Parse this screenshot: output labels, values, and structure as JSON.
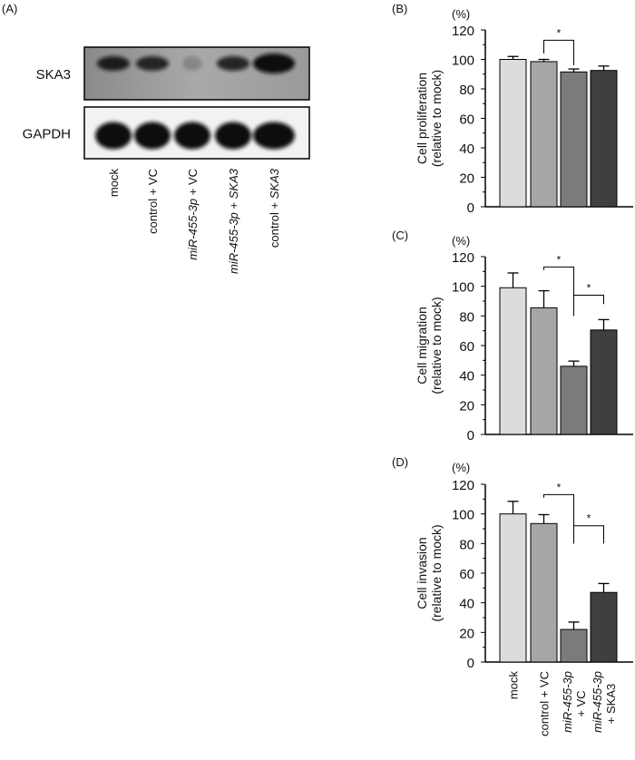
{
  "panel_a": {
    "label": "(A)",
    "rows": [
      "SKA3",
      "GAPDH"
    ],
    "band_intensity": {
      "SKA3": [
        0.9,
        0.85,
        0.2,
        0.85,
        1.0
      ],
      "GAPDH": [
        1.0,
        1.0,
        1.0,
        1.0,
        1.0
      ]
    },
    "lanes": [
      [
        {
          "t": "mock",
          "i": false
        }
      ],
      [
        {
          "t": "control + VC",
          "i": false
        }
      ],
      [
        {
          "t": "miR-455-3p",
          "i": true
        },
        {
          "t": " + VC",
          "i": false
        }
      ],
      [
        {
          "t": "miR-455-3p",
          "i": true
        },
        {
          "t": " + ",
          "i": false
        },
        {
          "t": "SKA3",
          "i": true
        }
      ],
      [
        {
          "t": "control + ",
          "i": false
        },
        {
          "t": "SKA3",
          "i": true
        }
      ]
    ]
  },
  "chart_data": [
    {
      "panel": "(B)",
      "type": "bar",
      "unit": "(%)",
      "ylabel": [
        "Cell proliferation",
        "(relative to mock)"
      ],
      "ylim": [
        0,
        120
      ],
      "yticks": [
        "0",
        "20",
        "40",
        "60",
        "80",
        "100",
        "120"
      ],
      "values": [
        100,
        98.5,
        91.5,
        92.5
      ],
      "errors": [
        2,
        1.5,
        2,
        3
      ],
      "significance": [
        {
          "pair": [
            1,
            2
          ],
          "label": "*"
        }
      ]
    },
    {
      "panel": "(C)",
      "type": "bar",
      "unit": "(%)",
      "ylabel": [
        "Cell migration",
        "(relative to mock)"
      ],
      "ylim": [
        0,
        120
      ],
      "yticks": [
        "0",
        "20",
        "40",
        "60",
        "80",
        "100",
        "120"
      ],
      "values": [
        99,
        85.5,
        46,
        70.5
      ],
      "errors": [
        10,
        11.5,
        3.5,
        7
      ],
      "significance": [
        {
          "pair": [
            1,
            2
          ],
          "label": "*"
        },
        {
          "pair": [
            2,
            3
          ],
          "label": "*"
        }
      ]
    },
    {
      "panel": "(D)",
      "type": "bar",
      "unit": "(%)",
      "ylabel": [
        "Cell invasion",
        "(relative to mock)"
      ],
      "ylim": [
        0,
        120
      ],
      "yticks": [
        "0",
        "20",
        "40",
        "60",
        "80",
        "100",
        "120"
      ],
      "values": [
        100,
        93.5,
        22,
        47
      ],
      "errors": [
        8.5,
        6,
        5,
        6
      ],
      "significance": [
        {
          "pair": [
            1,
            2
          ],
          "label": "*"
        },
        {
          "pair": [
            2,
            3
          ],
          "label": "*"
        }
      ],
      "categories": [
        [
          [
            {
              "t": "mock",
              "i": false
            }
          ]
        ],
        [
          [
            {
              "t": "control + VC",
              "i": false
            }
          ]
        ],
        [
          [
            {
              "t": "miR-455-3p",
              "i": true
            }
          ],
          [
            {
              "t": "+ VC",
              "i": false
            }
          ]
        ],
        [
          [
            {
              "t": "miR-455-3p",
              "i": true
            }
          ],
          [
            {
              "t": "+ SKA3",
              "i": false
            }
          ]
        ]
      ]
    }
  ],
  "bar_colors": [
    "#dcdcdc",
    "#a6a6a6",
    "#7b7b7b",
    "#3f3f3f"
  ]
}
